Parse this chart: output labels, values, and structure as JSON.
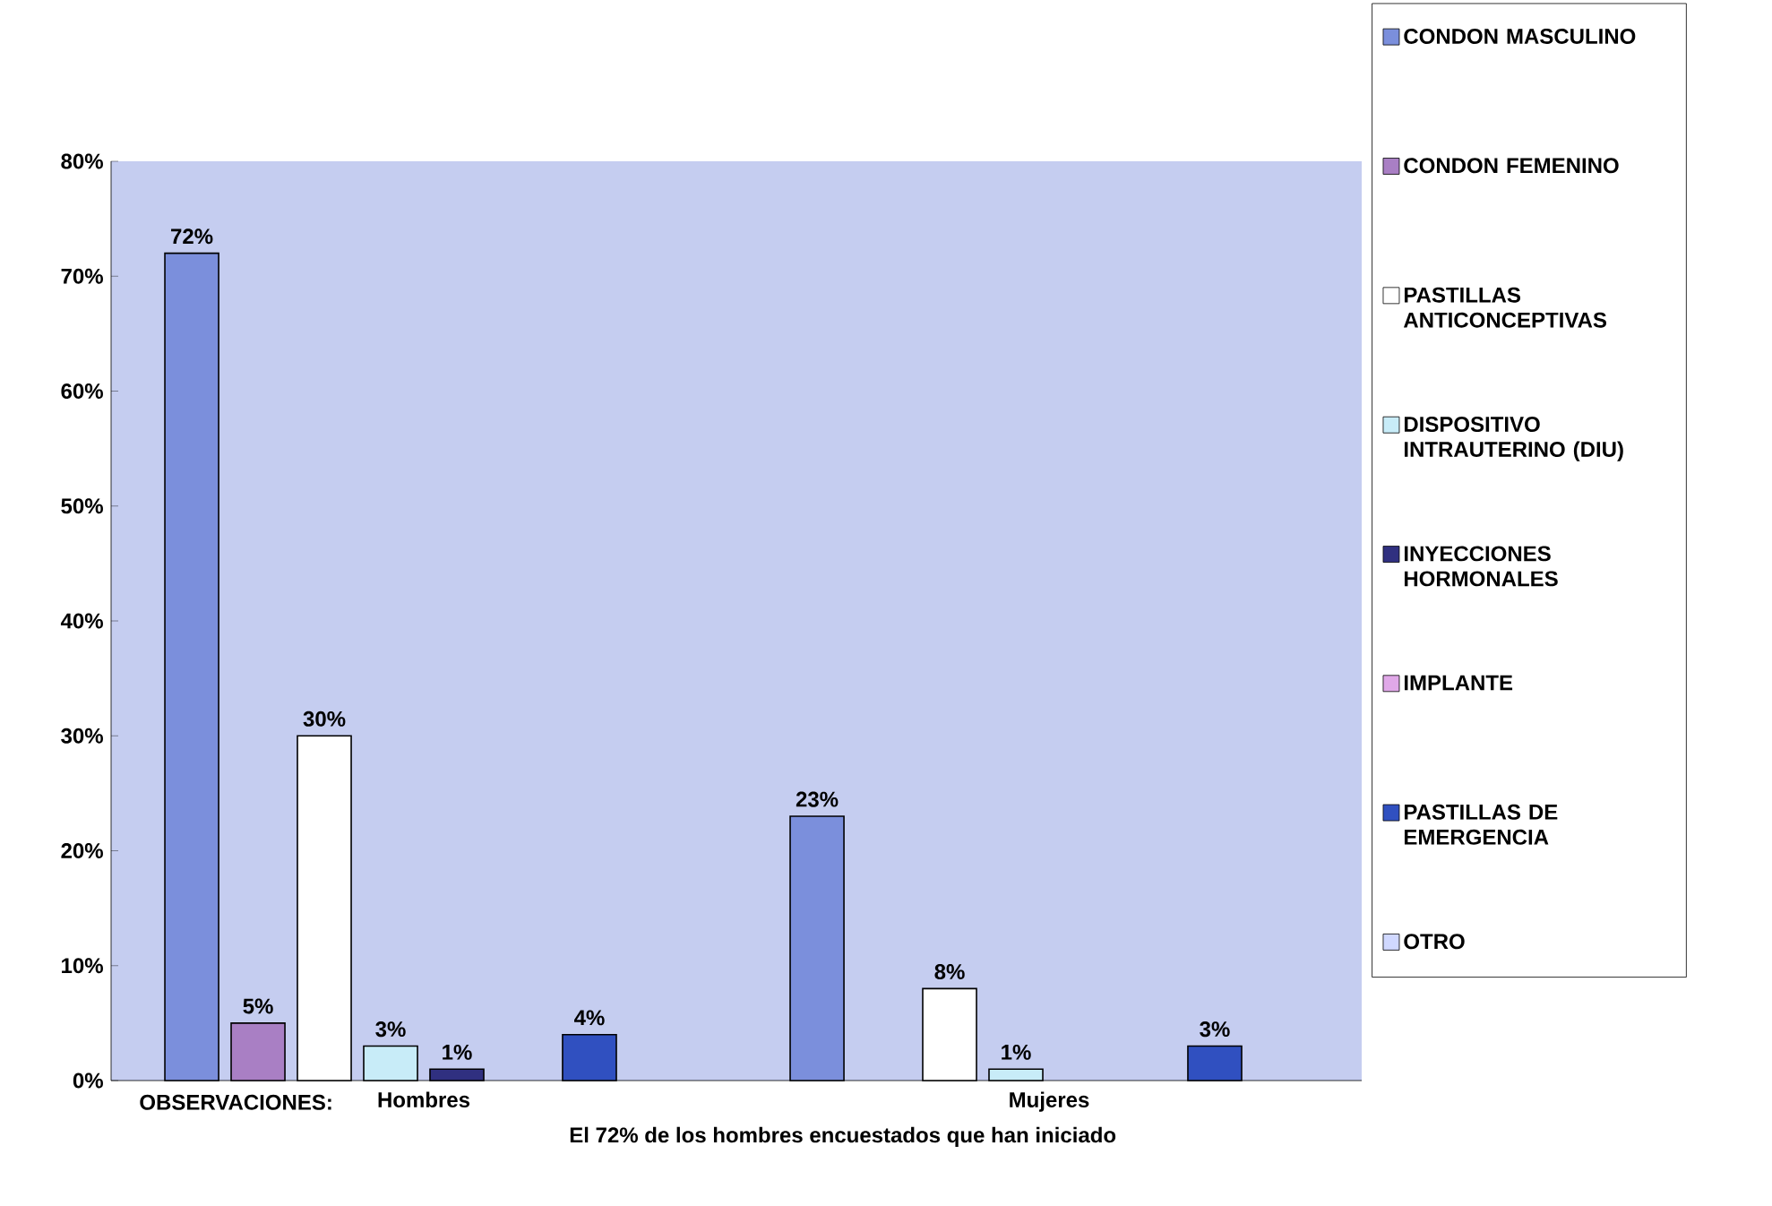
{
  "chart_data": {
    "type": "bar",
    "categories": [
      "Hombres",
      "Mujeres"
    ],
    "series": [
      {
        "name": "CONDON MASCULINO",
        "color": "#7b8fdc",
        "values": [
          72,
          23
        ],
        "value_labels": [
          "72%",
          "23%"
        ]
      },
      {
        "name": "CONDON FEMENINO",
        "color": "#a97fc4",
        "values": [
          5,
          null
        ],
        "value_labels": [
          "5%",
          null
        ]
      },
      {
        "name": "PASTILLAS ANTICONCEPTIVAS",
        "color": "#ffffff",
        "values": [
          30,
          8
        ],
        "value_labels": [
          "30%",
          "8%"
        ]
      },
      {
        "name": "DISPOSITIVO INTRAUTERINO (DIU)",
        "color": "#c8ecf8",
        "values": [
          3,
          1
        ],
        "value_labels": [
          "3%",
          "1%"
        ]
      },
      {
        "name": "INYECCIONES HORMONALES",
        "color": "#303080",
        "values": [
          1,
          null
        ],
        "value_labels": [
          "1%",
          null
        ]
      },
      {
        "name": "IMPLANTE",
        "color": "#e0a8e8",
        "values": [
          null,
          null
        ]
      },
      {
        "name": "PASTILLAS DE EMERGENCIA",
        "color": "#3050c0",
        "values": [
          4,
          3
        ],
        "value_labels": [
          "4%",
          "3%"
        ]
      },
      {
        "name": "OTRO",
        "color": "#d0d8ff",
        "values": [
          null,
          null
        ]
      }
    ],
    "ylim": [
      0,
      80
    ],
    "yticks": [
      {
        "value": 0,
        "label": "0%"
      },
      {
        "value": 10,
        "label": "10%"
      },
      {
        "value": 20,
        "label": "20%"
      },
      {
        "value": 30,
        "label": "30%"
      },
      {
        "value": 40,
        "label": "40%"
      },
      {
        "value": 50,
        "label": "50%"
      },
      {
        "value": 60,
        "label": "60%"
      },
      {
        "value": 70,
        "label": "70%"
      },
      {
        "value": 80,
        "label": "80%"
      }
    ],
    "legend": "right",
    "annotations": [
      "OBSERVACIONES:",
      "El 72% de los hombres encuestados que han iniciado"
    ]
  }
}
